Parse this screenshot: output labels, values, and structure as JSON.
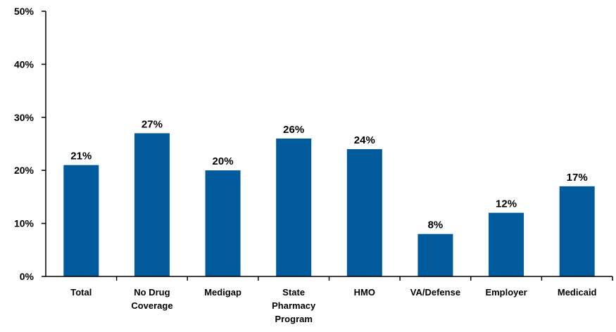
{
  "chart_data": {
    "type": "bar",
    "categories": [
      [
        "Total"
      ],
      [
        "No Drug",
        "Coverage"
      ],
      [
        "Medigap"
      ],
      [
        "State",
        "Pharmacy",
        "Program"
      ],
      [
        "HMO"
      ],
      [
        "VA/Defense"
      ],
      [
        "Employer"
      ],
      [
        "Medicaid"
      ]
    ],
    "values": [
      21,
      27,
      20,
      26,
      24,
      8,
      12,
      17
    ],
    "data_labels": [
      "21%",
      "27%",
      "20%",
      "26%",
      "24%",
      "8%",
      "12%",
      "17%"
    ],
    "ylim": [
      0,
      50
    ],
    "yticks": [
      0,
      10,
      20,
      30,
      40,
      50
    ],
    "ytick_labels": [
      "0%",
      "10%",
      "20%",
      "30%",
      "40%",
      "50%"
    ],
    "bar_color": "#005a9c",
    "grid": false,
    "title": "",
    "xlabel": "",
    "ylabel": ""
  }
}
